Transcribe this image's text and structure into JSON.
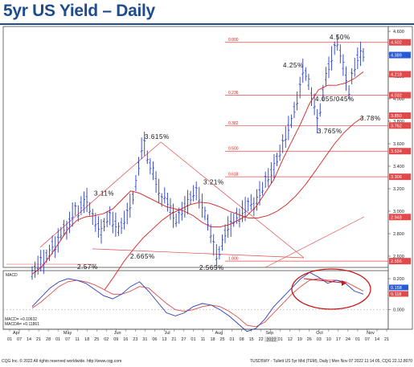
{
  "title": "5yr US Yield – Daily",
  "chart_data": {
    "type": "ohlc",
    "price_axis": {
      "ticks": [
        "4.600",
        "4.400",
        "4.200",
        "4.000",
        "3.800",
        "3.600",
        "3.400",
        "3.200",
        "3.000",
        "2.800",
        "2.600"
      ]
    },
    "price_tags": [
      {
        "text": "4.502",
        "value": 4.502,
        "color": "#e04a4a"
      },
      {
        "text": "4.389",
        "value": 4.389,
        "color": "#2a5bd7"
      },
      {
        "text": "4.218",
        "value": 4.218,
        "color": "#e04a4a"
      },
      {
        "text": "4.032",
        "value": 4.032,
        "color": "#e04a4a"
      },
      {
        "text": "3.850",
        "value": 3.85,
        "color": "#e04a4a"
      },
      {
        "text": "3.762",
        "value": 3.762,
        "color": "#e04a4a"
      },
      {
        "text": "3.534",
        "value": 3.534,
        "color": "#e04a4a"
      },
      {
        "text": "3.306",
        "value": 3.306,
        "color": "#e04a4a"
      },
      {
        "text": "2.948",
        "value": 2.948,
        "color": "#e04a4a"
      },
      {
        "text": "2.556",
        "value": 2.556,
        "color": "#e04a4a"
      }
    ],
    "fib_levels": [
      {
        "ratio": "0.000",
        "value": 4.502
      },
      {
        "ratio": "0.236",
        "value": 4.032
      },
      {
        "ratio": "0.382",
        "value": 3.762
      },
      {
        "ratio": "0.500",
        "value": 3.534
      },
      {
        "ratio": "0.618",
        "value": 3.306
      },
      {
        "ratio": "1.000",
        "value": 2.556
      }
    ],
    "annotations": [
      {
        "text": "4.50%",
        "value": 4.5
      },
      {
        "text": "4.25%",
        "value": 4.25
      },
      {
        "text": "4.055/045%",
        "value": 4.05
      },
      {
        "text": "3.765%",
        "value": 3.765
      },
      {
        "text": "3.78%",
        "value": 3.78
      },
      {
        "text": "3.615%",
        "value": 3.615
      },
      {
        "text": "3.11%",
        "value": 3.11
      },
      {
        "text": "3.21%",
        "value": 3.21
      },
      {
        "text": "2.57%",
        "value": 2.57
      },
      {
        "text": "2.665%",
        "value": 2.665
      },
      {
        "text": "2.565%",
        "value": 2.565
      }
    ],
    "price_bars": [
      2.45,
      2.48,
      2.52,
      2.56,
      2.55,
      2.6,
      2.63,
      2.7,
      2.68,
      2.74,
      2.8,
      2.85,
      2.83,
      2.9,
      2.97,
      3.02,
      2.98,
      3.05,
      3.08,
      3.1,
      3.02,
      2.95,
      2.9,
      2.86,
      2.82,
      2.88,
      2.93,
      2.96,
      2.9,
      2.88,
      2.84,
      2.87,
      2.92,
      2.98,
      3.05,
      3.12,
      3.25,
      3.4,
      3.56,
      3.6,
      3.48,
      3.4,
      3.36,
      3.26,
      3.18,
      3.1,
      3.14,
      3.08,
      3.02,
      2.96,
      2.92,
      2.96,
      3.0,
      3.04,
      3.08,
      3.12,
      3.16,
      3.18,
      3.12,
      3.05,
      2.98,
      2.9,
      2.8,
      2.7,
      2.6,
      2.63,
      2.72,
      2.8,
      2.86,
      2.88,
      2.92,
      2.96,
      2.94,
      3.0,
      3.02,
      3.06,
      3.08,
      3.04,
      3.1,
      3.16,
      3.2,
      3.28,
      3.3,
      3.34,
      3.4,
      3.46,
      3.52,
      3.6,
      3.66,
      3.74,
      3.8,
      3.9,
      3.98,
      4.1,
      4.25,
      4.22,
      4.15,
      4.02,
      3.95,
      3.8,
      3.9,
      4.05,
      4.2,
      4.28,
      4.36,
      4.45,
      4.5,
      4.4,
      4.3,
      4.18,
      4.06,
      4.2,
      4.28,
      4.36,
      4.4,
      4.39
    ],
    "ma_fast": [
      2.44,
      2.5,
      2.6,
      2.72,
      2.84,
      2.92,
      2.95,
      2.96,
      2.98,
      3.02,
      3.1,
      3.18,
      3.16,
      3.12,
      3.08,
      3.04,
      3.02,
      3.0,
      2.96,
      2.9,
      2.86,
      2.86,
      2.88,
      2.92,
      2.96,
      3.04,
      3.16,
      3.28,
      3.46,
      3.62,
      3.78,
      3.96,
      4.08,
      4.12,
      4.12,
      4.14,
      4.18,
      4.24
    ],
    "ma_slow": [
      2.3,
      2.42,
      2.55,
      2.66,
      2.76,
      2.84,
      2.92,
      2.98,
      3.02,
      3.06,
      3.08,
      3.07,
      3.04,
      3.0,
      2.97,
      2.94,
      2.94,
      2.96,
      3.0,
      3.06,
      3.14,
      3.24,
      3.36,
      3.48,
      3.6,
      3.7,
      3.78,
      3.84
    ],
    "macd": {
      "label": "MACD",
      "ticks": [
        "0.200",
        "0.000"
      ],
      "value_tags": [
        {
          "text": "0.158",
          "color": "#2a5bd7"
        },
        {
          "text": "0.118",
          "color": "#e04a4a"
        }
      ],
      "legend": [
        "MACD= +0.10632",
        "MACDA= +0.11861"
      ],
      "macd_line": [
        0.02,
        0.08,
        0.14,
        0.18,
        0.2,
        0.19,
        0.17,
        0.13,
        0.09,
        0.07,
        0.1,
        0.15,
        0.18,
        0.12,
        0.05,
        -0.02,
        -0.04,
        -0.02,
        0.02,
        0.04,
        0.03,
        0.0,
        -0.04,
        -0.09,
        -0.14,
        -0.12,
        -0.06,
        0.02,
        0.08,
        0.14,
        0.2,
        0.24,
        0.21,
        0.17,
        0.19,
        0.17,
        0.12,
        0.1
      ],
      "signal_line": [
        0.01,
        0.05,
        0.1,
        0.15,
        0.18,
        0.19,
        0.18,
        0.16,
        0.13,
        0.1,
        0.1,
        0.12,
        0.15,
        0.14,
        0.09,
        0.04,
        0.0,
        -0.01,
        0.0,
        0.02,
        0.03,
        0.02,
        -0.01,
        -0.05,
        -0.1,
        -0.11,
        -0.08,
        -0.02,
        0.04,
        0.1,
        0.15,
        0.19,
        0.2,
        0.19,
        0.19,
        0.18,
        0.15,
        0.12
      ]
    },
    "x_axis": {
      "days": [
        "01",
        "07",
        "14",
        "21",
        "28",
        "01",
        "07",
        "11",
        "18",
        "25",
        "02",
        "09",
        "16",
        "23",
        "31",
        "06",
        "13",
        "21",
        "27",
        "01",
        "11",
        "18",
        "25",
        "01",
        "08",
        "15",
        "22",
        "29",
        "01",
        "12",
        "19",
        "26",
        "03",
        "10",
        "17",
        "24",
        "01",
        "07",
        "14",
        "21"
      ],
      "months": [
        "Apr",
        "May",
        "Jun",
        "Jul",
        "Aug",
        "Sep",
        "Oct",
        "Nov"
      ],
      "year_tag": "2022"
    },
    "footer_left": "CQG Inc. © 2022 All rights reserved worldwide. http://www.cqg.com",
    "footer_right": "TUSD5WY - Tullett US 5yr Mid (TEM), Daily | Mon Nov 07 2022 11:14:05, CQG 22.12.8070"
  }
}
